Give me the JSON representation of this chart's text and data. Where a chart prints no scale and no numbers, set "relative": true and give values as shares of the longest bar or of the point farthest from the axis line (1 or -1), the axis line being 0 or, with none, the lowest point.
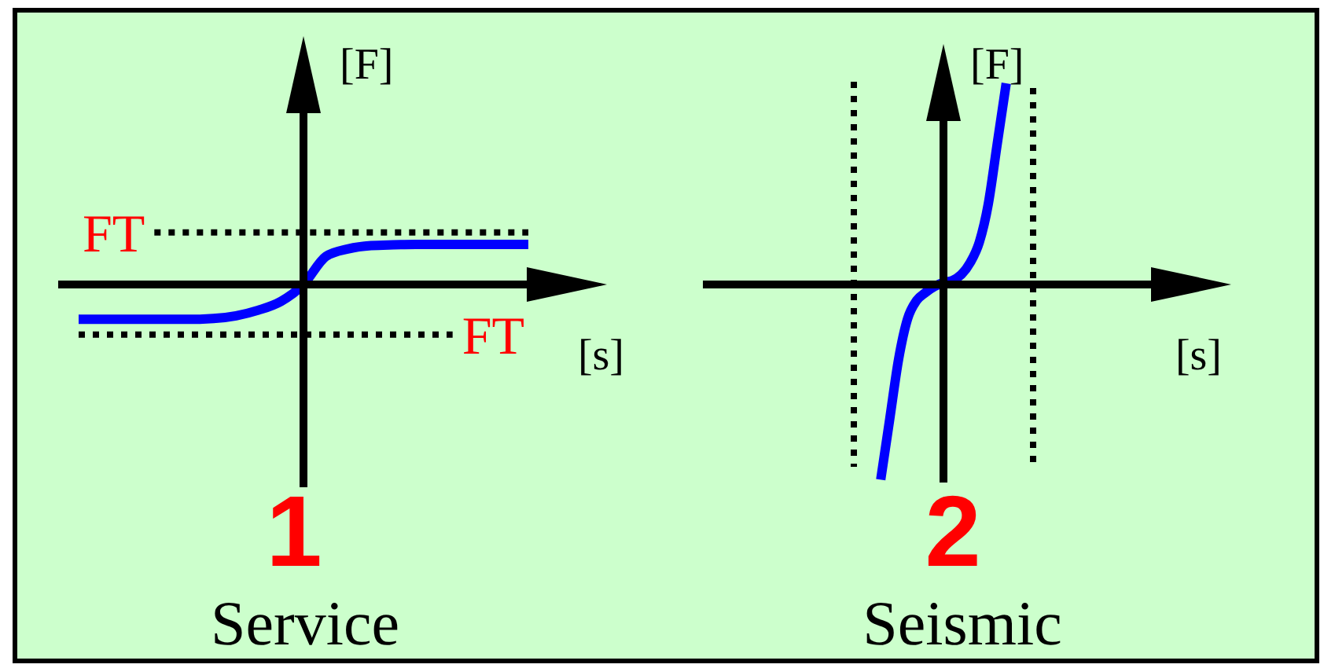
{
  "chart_data": [
    {
      "type": "line",
      "title": "1",
      "subtitle": "Service",
      "xlabel": "[s]",
      "ylabel": "[F]",
      "relative": true,
      "marker": "none",
      "line_style": "solid",
      "categories": [
        null,
        null,
        null,
        null,
        null,
        null,
        null,
        null,
        null,
        null,
        null,
        null,
        null,
        null,
        null,
        null,
        null,
        null,
        null,
        null,
        null
      ],
      "series": [
        {
          "color": "#0000ff",
          "values": [
            -0.87,
            -0.87,
            -0.87,
            -0.87,
            -0.87,
            -0.87,
            -0.85,
            -0.78,
            -0.64,
            -0.42,
            0,
            0.7,
            0.89,
            0.97,
            0.99,
            1,
            1,
            1,
            1,
            1,
            1
          ]
        }
      ],
      "ref_lines": [
        {
          "axis": "y",
          "value": 1.3,
          "label": "FT",
          "color": "#000000",
          "line_style": "dotted"
        },
        {
          "axis": "y",
          "value": -1.25,
          "label": "FT",
          "color": "#000000",
          "line_style": "dotted"
        }
      ]
    },
    {
      "type": "line",
      "title": "2",
      "subtitle": "Seismic",
      "xlabel": "[s]",
      "ylabel": "[F]",
      "relative": true,
      "marker": "none",
      "line_style": "solid",
      "categories": [
        null,
        null,
        null,
        null,
        null,
        null,
        null,
        null,
        null,
        null,
        null,
        null,
        null,
        null,
        null,
        null,
        null,
        null,
        null,
        null,
        null
      ],
      "series": [
        {
          "color": "#0000ff",
          "values": [
            null,
            null,
            null,
            -0.97,
            -0.67,
            -0.37,
            -0.17,
            -0.08,
            -0.04,
            -0.01,
            0.01,
            0.02,
            0.05,
            0.11,
            0.21,
            0.4,
            0.7,
            1,
            null,
            null,
            null
          ]
        }
      ]
    }
  ]
}
